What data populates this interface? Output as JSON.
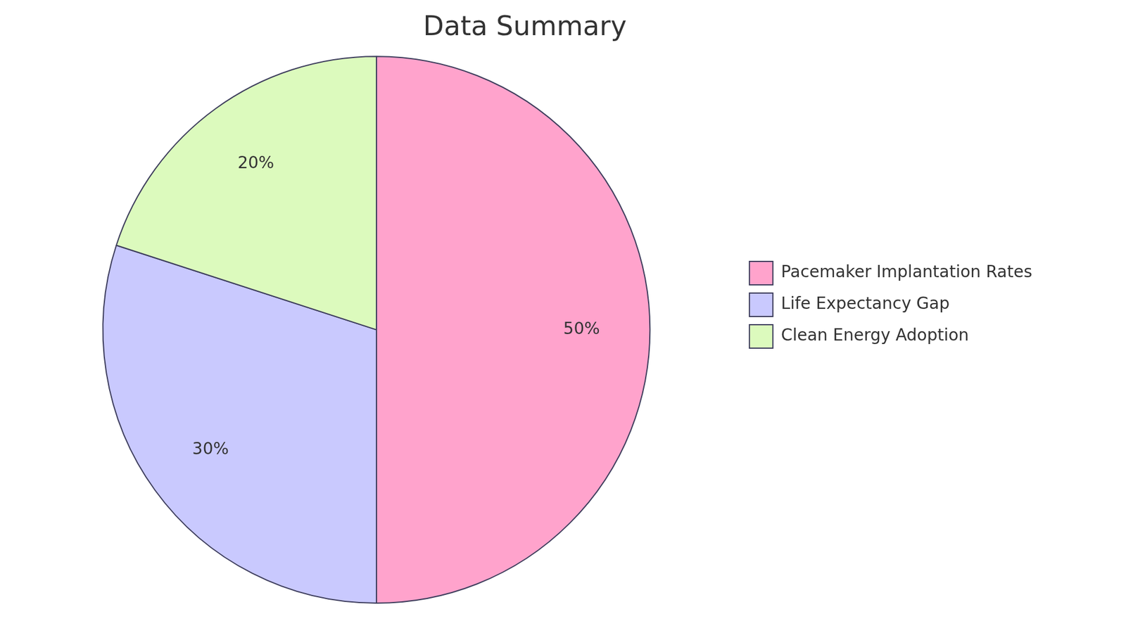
{
  "chart_data": {
    "type": "pie",
    "title": "Data Summary",
    "categories": [
      "Pacemaker Implantation Rates",
      "Life Expectancy Gap",
      "Clean Energy Adoption"
    ],
    "values": [
      50,
      30,
      20
    ],
    "value_labels": [
      "50%",
      "30%",
      "20%"
    ],
    "colors": [
      "#ffa3cc",
      "#c9c9fe",
      "#dcfabd"
    ],
    "data_labels": true,
    "legend": "right"
  }
}
